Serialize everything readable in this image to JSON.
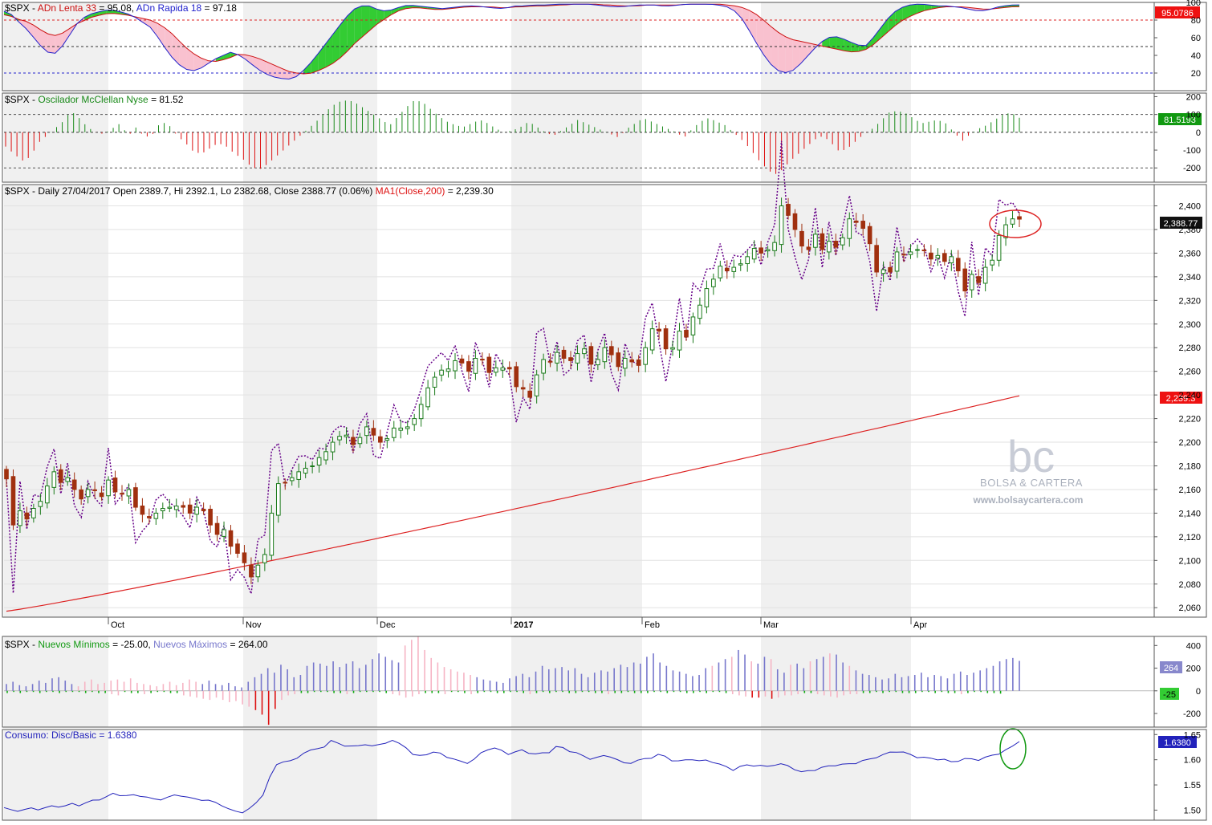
{
  "branding": {
    "logo_text": "bc",
    "name": "BOLSA & CARTERA",
    "url": "www.bolsaycartera.com"
  },
  "colors": {
    "up_candle": "#ffffff",
    "up_border": "#1a7a1a",
    "down_candle": "#a0300f",
    "ma200": "#dd2222",
    "consumo_line": "#2222bb",
    "osc_pos": "#1a8a1a",
    "osc_neg": "#dd1111",
    "adn_lenta": "#cc1111",
    "adn_rapida": "#2222cc",
    "fill_green": "#33cc33",
    "fill_pink": "#f9c1cf",
    "new_high_bar": "#7777cc",
    "new_high_pink": "#f6b4c4",
    "new_low_bar": "#11aa11",
    "new_low_red": "#dd1111",
    "shade": "#f0f0f0",
    "highlight_red": "#dd2222",
    "highlight_green": "#119911"
  },
  "panels": {
    "adn": {
      "title_prefix": "$SPX - ",
      "title_lenta": "ADn Lenta 33",
      "value_lenta": " = 95.08, ",
      "title_rapida": "ADn Rapida 18",
      "value_rapida": " = 97.18",
      "badge": "95.0786"
    },
    "mcclellan": {
      "title_prefix": "$SPX - ",
      "title_name": "Oscilador McClellan Nyse",
      "title_value": " = 81.52",
      "badge": "81.5193"
    },
    "price": {
      "title": "$SPX - Daily 27/04/2017 Open 2389.7, Hi 2392.1, Lo 2382.68, Close 2388.77 (0.06%) ",
      "title_ma": "MA1(Close,200)",
      "title_ma_value": " = 2,239.30",
      "badge_close": "2,388.77",
      "badge_ma": "2,239.3"
    },
    "newhighs": {
      "title_prefix": "$SPX - ",
      "title_lows": "Nuevos Mínimos",
      "value_lows": " = -25.00, ",
      "title_highs": "Nuevos Máximos",
      "value_highs": " = 264.00",
      "badge_high": "264",
      "badge_low": "-25"
    },
    "consumo": {
      "title": "Consumo: Disc/Basic = 1.6380",
      "badge": "1.6380"
    }
  },
  "chart_data": [
    {
      "type": "line",
      "panel": "ADn Lenta / ADn Rapida",
      "series": [
        {
          "name": "ADn Lenta 33",
          "values": [
            86,
            84,
            80,
            78,
            72,
            66,
            62,
            64,
            70,
            76,
            80,
            84,
            86,
            88,
            87,
            86,
            84,
            82,
            80,
            76,
            70,
            62,
            52,
            44,
            38,
            34,
            33,
            35,
            38,
            42,
            40,
            38,
            34,
            30,
            26,
            22,
            20,
            19,
            20,
            24,
            28,
            34,
            42,
            52,
            60,
            68,
            76,
            82,
            88,
            92,
            94,
            94,
            93,
            92,
            92,
            93,
            94,
            95,
            95,
            95,
            95,
            94,
            94,
            95,
            95,
            96,
            96,
            96,
            97,
            97,
            98,
            98,
            98,
            98,
            97,
            97,
            96,
            96,
            96,
            97,
            97,
            97,
            97,
            97,
            98,
            98,
            98,
            98,
            98,
            97,
            96,
            94,
            90,
            84,
            76,
            68,
            62,
            58,
            56,
            54,
            52,
            50,
            48,
            46,
            44,
            44,
            46,
            52,
            60,
            68,
            76,
            82,
            86,
            90,
            92,
            94,
            95,
            95,
            95,
            94,
            93,
            92,
            93,
            94,
            95,
            95.08
          ]
        },
        {
          "name": "ADn Rapida 18",
          "values": [
            90,
            86,
            76,
            68,
            56,
            46,
            40,
            48,
            62,
            76,
            84,
            88,
            90,
            92,
            90,
            88,
            84,
            78,
            72,
            60,
            46,
            34,
            26,
            22,
            24,
            30,
            36,
            40,
            44,
            40,
            34,
            26,
            20,
            16,
            14,
            13,
            16,
            24,
            34,
            46,
            58,
            70,
            82,
            92,
            96,
            96,
            92,
            90,
            92,
            96,
            97,
            96,
            95,
            94,
            93,
            94,
            95,
            96,
            96,
            95,
            94,
            93,
            94,
            96,
            96,
            97,
            97,
            97,
            98,
            98,
            98,
            98,
            98,
            97,
            96,
            95,
            95,
            96,
            97,
            97,
            97,
            96,
            96,
            97,
            98,
            98,
            98,
            98,
            97,
            95,
            90,
            80,
            64,
            48,
            34,
            24,
            20,
            22,
            30,
            40,
            50,
            58,
            62,
            60,
            56,
            52,
            50,
            60,
            72,
            84,
            92,
            96,
            98,
            98,
            97,
            96,
            96,
            95,
            94,
            92,
            90,
            91,
            94,
            96,
            97,
            97.18
          ]
        }
      ],
      "ylim": [
        0,
        100
      ],
      "yticks": [
        20,
        40,
        60,
        80,
        100
      ],
      "reference_lines": [
        80,
        50,
        20
      ]
    },
    {
      "type": "bar",
      "panel": "Oscilador McClellan Nyse",
      "series": [
        {
          "name": "Oscilador McClellan Nyse",
          "values": [
            -80,
            -120,
            -160,
            -140,
            -60,
            -20,
            20,
            60,
            120,
            80,
            30,
            0,
            -10,
            20,
            50,
            -20,
            30,
            -30,
            -10,
            60,
            40,
            -20,
            -60,
            -110,
            -120,
            -90,
            -60,
            -80,
            -120,
            -150,
            -190,
            -210,
            -180,
            -140,
            -100,
            -60,
            -20,
            20,
            60,
            110,
            150,
            175,
            180,
            160,
            130,
            100,
            70,
            40,
            90,
            140,
            180,
            170,
            130,
            90,
            60,
            40,
            30,
            50,
            70,
            50,
            20,
            0,
            10,
            30,
            60,
            30,
            0,
            -20,
            10,
            40,
            70,
            50,
            30,
            10,
            -10,
            -30,
            20,
            50,
            80,
            60,
            40,
            20,
            0,
            -30,
            20,
            60,
            80,
            60,
            40,
            0,
            -40,
            -90,
            -150,
            -200,
            -240,
            -210,
            -160,
            -120,
            -80,
            -40,
            -20,
            -60,
            -110,
            -90,
            -50,
            -10,
            20,
            60,
            110,
            120,
            110,
            80,
            50,
            60,
            70,
            50,
            0,
            -50,
            -10,
            20,
            40,
            70,
            100,
            110,
            81.52
          ]
        }
      ],
      "ylim": [
        -280,
        220
      ],
      "yticks": [
        -200,
        -100,
        0,
        100,
        200
      ],
      "reference_lines": [
        100,
        0,
        -200
      ]
    },
    {
      "type": "candlestick",
      "panel": "$SPX Daily",
      "x_labels": [
        "Oct",
        "Nov",
        "Dec",
        "2017",
        "Feb",
        "Mar",
        "Apr"
      ],
      "ylim": [
        2052,
        2418
      ],
      "yticks": [
        2060,
        2080,
        2100,
        2120,
        2140,
        2160,
        2180,
        2200,
        2220,
        2240,
        2260,
        2280,
        2300,
        2320,
        2340,
        2360,
        2380,
        2400
      ],
      "close": [
        2169,
        2130,
        2142,
        2135,
        2144,
        2150,
        2163,
        2175,
        2166,
        2170,
        2160,
        2152,
        2160,
        2159,
        2154,
        2168,
        2158,
        2156,
        2160,
        2145,
        2139,
        2136,
        2140,
        2144,
        2145,
        2146,
        2145,
        2140,
        2145,
        2142,
        2130,
        2122,
        2126,
        2112,
        2106,
        2098,
        2086,
        2096,
        2105,
        2140,
        2165,
        2166,
        2170,
        2175,
        2178,
        2180,
        2187,
        2192,
        2200,
        2205,
        2206,
        2198,
        2204,
        2213,
        2206,
        2200,
        2203,
        2212,
        2212,
        2213,
        2220,
        2232,
        2246,
        2255,
        2261,
        2262,
        2269,
        2267,
        2260,
        2271,
        2270,
        2259,
        2263,
        2263,
        2262,
        2247,
        2245,
        2238,
        2257,
        2270,
        2268,
        2276,
        2271,
        2269,
        2275,
        2279,
        2266,
        2270,
        2280,
        2274,
        2264,
        2271,
        2268,
        2265,
        2280,
        2296,
        2294,
        2279,
        2280,
        2294,
        2289,
        2306,
        2316,
        2330,
        2338,
        2349,
        2345,
        2348,
        2351,
        2357,
        2364,
        2360,
        2363,
        2369,
        2400,
        2392,
        2380,
        2366,
        2363,
        2376,
        2363,
        2370,
        2365,
        2373,
        2389,
        2386,
        2381,
        2368,
        2344,
        2346,
        2344,
        2361,
        2359,
        2361,
        2363,
        2362,
        2355,
        2358,
        2353,
        2357,
        2345,
        2328,
        2342,
        2335,
        2348,
        2354,
        2375,
        2384,
        2389,
        2388.77
      ],
      "series": [
        {
          "name": "MA1(Close,200)",
          "values_at_start_end": [
            2057,
            2239.3
          ]
        },
        {
          "name": "purple dotted",
          "note": "unlabeled overlay"
        }
      ]
    },
    {
      "type": "bar",
      "panel": "Nuevos Mínimos / Nuevos Máximos",
      "series": [
        {
          "name": "Nuevos Máximos",
          "values": [
            60,
            80,
            50,
            40,
            60,
            90,
            70,
            110,
            120,
            90,
            60,
            40,
            80,
            100,
            60,
            70,
            90,
            100,
            80,
            110,
            70,
            60,
            50,
            40,
            60,
            80,
            50,
            70,
            100,
            80,
            60,
            90,
            60,
            50,
            70,
            40,
            30,
            80,
            120,
            150,
            200,
            160,
            230,
            190,
            120,
            140,
            220,
            250,
            240,
            220,
            260,
            210,
            240,
            260,
            200,
            230,
            280,
            330,
            300,
            270,
            250,
            400,
            450,
            480,
            360,
            290,
            250,
            210,
            190,
            170,
            160,
            140,
            120,
            100,
            90,
            80,
            70,
            110,
            130,
            150,
            120,
            170,
            220,
            190,
            200,
            210,
            180,
            200,
            150,
            120,
            160,
            180,
            170,
            200,
            230,
            210,
            250,
            240,
            300,
            330,
            250,
            220,
            180,
            170,
            150,
            130,
            140,
            200,
            220,
            250,
            280,
            300,
            360,
            320,
            260,
            240,
            300,
            280,
            190,
            160,
            230,
            240,
            200,
            260,
            280,
            300,
            330,
            320,
            250,
            220,
            180,
            150,
            140,
            120,
            100,
            110,
            150,
            120,
            130,
            140,
            160,
            120,
            140,
            130,
            110,
            150,
            170,
            140,
            160,
            180,
            200,
            220,
            260,
            280,
            290,
            264
          ]
        },
        {
          "name": "Nuevos Mínimos",
          "values": [
            -20,
            -10,
            -20,
            -10,
            -10,
            -20,
            -10,
            -10,
            -20,
            -10,
            -10,
            -10,
            -20,
            -10,
            -20,
            -20,
            -30,
            -40,
            -10,
            -20,
            -20,
            -30,
            -20,
            -10,
            -10,
            -20,
            -20,
            -40,
            -50,
            -60,
            -70,
            -80,
            -60,
            -80,
            -100,
            -90,
            -120,
            -140,
            -170,
            -210,
            -300,
            -160,
            -80,
            -40,
            -30,
            -20,
            -20,
            -10,
            -10,
            -10,
            -20,
            -20,
            -30,
            -20,
            -10,
            -10,
            -10,
            -10,
            -20,
            -30,
            -40,
            -60,
            -50,
            -30,
            -20,
            -20,
            -20,
            -30,
            -10,
            -10,
            -20,
            -30,
            -20,
            -10,
            -10,
            -20,
            -20,
            -10,
            -10,
            -20,
            -30,
            -20,
            -10,
            -20,
            -10,
            -10,
            -20,
            -20,
            -10,
            -10,
            -20,
            -20,
            -30,
            -20,
            -20,
            -10,
            -20,
            -20,
            -20,
            -10,
            -10,
            -20,
            -10,
            -10,
            -20,
            -20,
            -10,
            -20,
            -10,
            -10,
            -20,
            -30,
            -40,
            -50,
            -60,
            -60,
            -50,
            -70,
            -60,
            -40,
            -40,
            -30,
            -20,
            -20,
            -30,
            -40,
            -50,
            -60,
            -40,
            -30,
            -30,
            -20,
            -20,
            -10,
            -20,
            -10,
            -10,
            -20,
            -20,
            -20,
            -10,
            -10,
            -20,
            -10,
            -20,
            -20,
            -30,
            -20,
            -10,
            -10,
            -20,
            -20,
            -25
          ]
        }
      ],
      "ylim": [
        -320,
        480
      ],
      "yticks": [
        -200,
        0,
        200,
        400
      ]
    },
    {
      "type": "line",
      "panel": "Consumo: Disc/Basic",
      "series": [
        {
          "name": "Consumo: Disc/Basic",
          "values": [
            1.505,
            1.498,
            1.5,
            1.503,
            1.502,
            1.505,
            1.508,
            1.507,
            1.512,
            1.51,
            1.516,
            1.52,
            1.525,
            1.532,
            1.53,
            1.528,
            1.53,
            1.526,
            1.52,
            1.523,
            1.528,
            1.53,
            1.525,
            1.52,
            1.522,
            1.515,
            1.51,
            1.5,
            1.494,
            1.5,
            1.512,
            1.535,
            1.58,
            1.598,
            1.597,
            1.602,
            1.62,
            1.618,
            1.625,
            1.638,
            1.63,
            1.628,
            1.625,
            1.632,
            1.626,
            1.63,
            1.64,
            1.632,
            1.625,
            1.604,
            1.61,
            1.615,
            1.612,
            1.605,
            1.598,
            1.593,
            1.6,
            1.615,
            1.625,
            1.62,
            1.612,
            1.615,
            1.62,
            1.61,
            1.612,
            1.616,
            1.628,
            1.62,
            1.615,
            1.607,
            1.602,
            1.605,
            1.61,
            1.6,
            1.592,
            1.596,
            1.6,
            1.604,
            1.61,
            1.605,
            1.596,
            1.598,
            1.602,
            1.596,
            1.6,
            1.592,
            1.586,
            1.58,
            1.588,
            1.59,
            1.588,
            1.586,
            1.592,
            1.59,
            1.584,
            1.575,
            1.578,
            1.582,
            1.586,
            1.59,
            1.59,
            1.592,
            1.596,
            1.6,
            1.606,
            1.61,
            1.618,
            1.615,
            1.61,
            1.605,
            1.603,
            1.602,
            1.6,
            1.595,
            1.6,
            1.602,
            1.6,
            1.604,
            1.61,
            1.615,
            1.624,
            1.638
          ]
        }
      ],
      "ylim": [
        1.48,
        1.66
      ],
      "yticks": [
        1.5,
        1.55,
        1.6,
        1.65
      ]
    }
  ]
}
